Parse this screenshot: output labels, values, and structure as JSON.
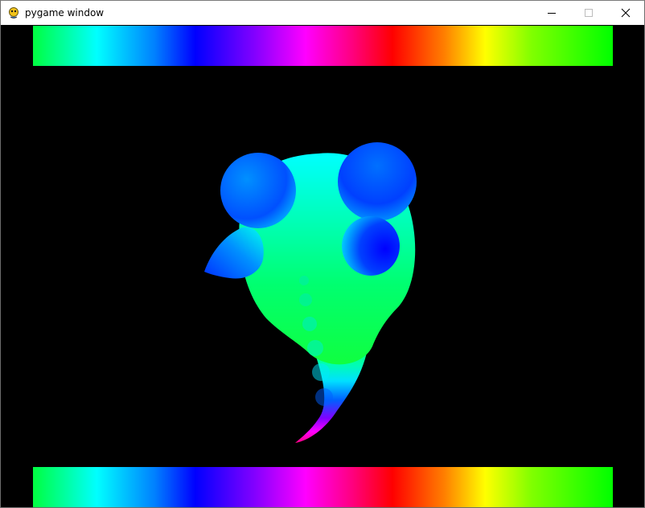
{
  "window": {
    "title": "pygame window",
    "app_icon": "pygame-snake-icon",
    "controls": {
      "minimize_icon": "minimize-icon",
      "maximize_icon": "maximize-icon",
      "close_icon": "close-icon"
    }
  },
  "canvas": {
    "background": "#000000",
    "hue_bar_colors": [
      "#00ff40",
      "#00ffff",
      "#0000ff",
      "#ff00ff",
      "#ff0000",
      "#ffff00",
      "#00ff00"
    ],
    "blob_colors": {
      "body": "#00ff80",
      "head": "#00ffff",
      "ear": "#0050ff",
      "eye": "#0000ff",
      "tail_tip": "#ff0080"
    }
  }
}
